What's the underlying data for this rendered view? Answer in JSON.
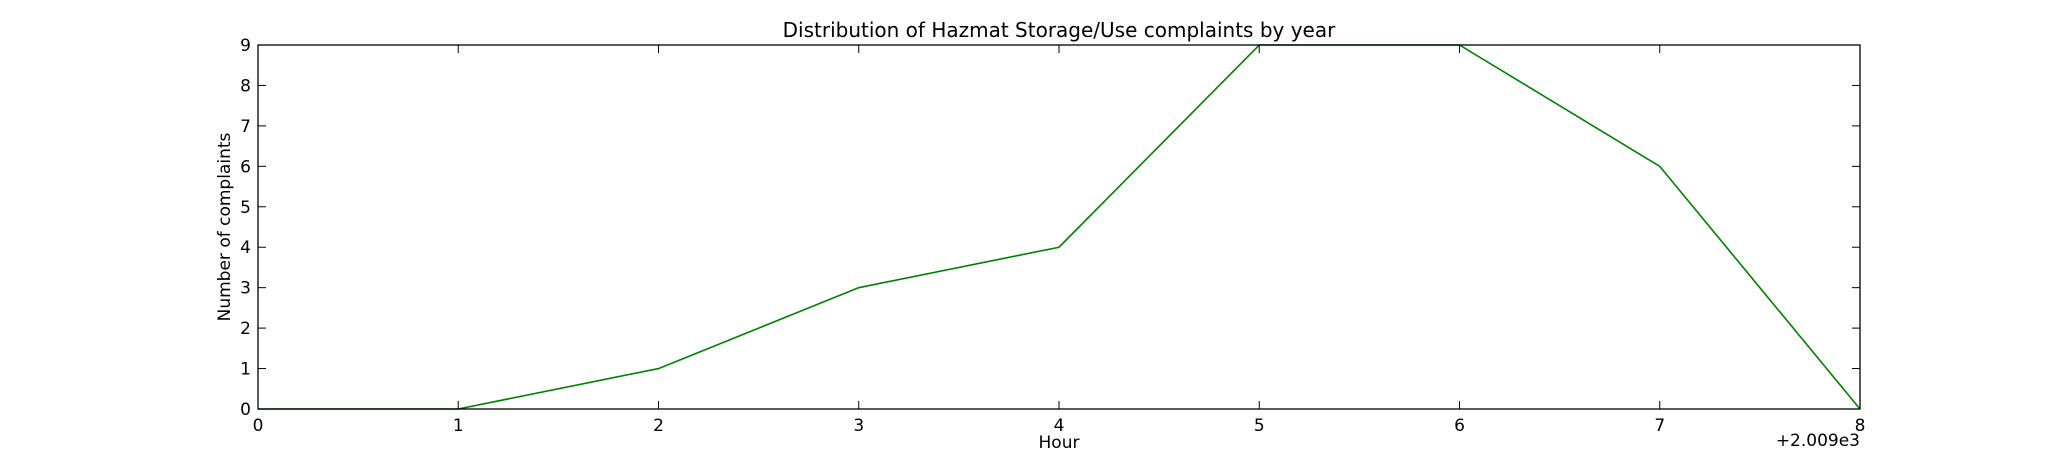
{
  "chart_data": {
    "type": "line",
    "title": "Distribution of  Hazmat Storage/Use complaints by year",
    "xlabel": "Hour",
    "ylabel": "Number of complaints",
    "x_offset_label": "+2.009e3",
    "x": [
      0,
      1,
      2,
      3,
      4,
      5,
      6,
      7,
      8
    ],
    "series": [
      {
        "values": [
          0,
          0,
          1,
          3,
          4,
          9,
          9,
          6,
          0
        ],
        "color": "#008000"
      }
    ],
    "xlim": [
      0,
      8
    ],
    "ylim": [
      0,
      9
    ],
    "x_ticks": [
      "0",
      "1",
      "2",
      "3",
      "4",
      "5",
      "6",
      "7",
      "8"
    ],
    "y_ticks": [
      "0",
      "1",
      "2",
      "3",
      "4",
      "5",
      "6",
      "7",
      "8",
      "9"
    ],
    "grid": false,
    "legend": "none"
  }
}
